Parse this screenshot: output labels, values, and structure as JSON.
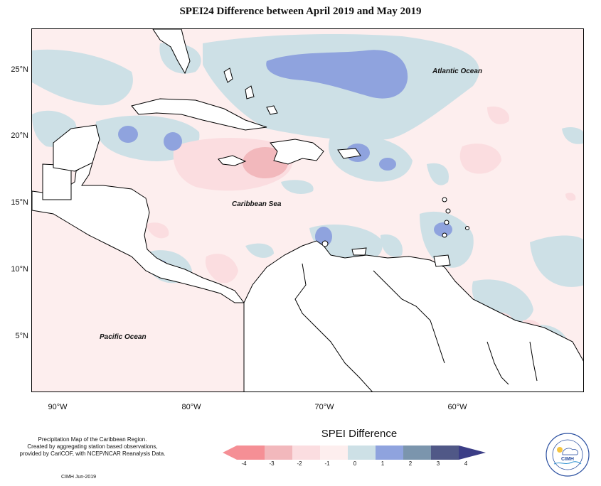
{
  "title": "SPEI24 Difference between April 2019 and May 2019",
  "map": {
    "lat_labels": [
      "25°N",
      "20°N",
      "15°N",
      "10°N",
      "5°N"
    ],
    "lon_labels": [
      "90°W",
      "80°W",
      "70°W",
      "60°W"
    ],
    "labels": {
      "atlantic": "Atlantic Ocean",
      "caribbean": "Caribbean Sea",
      "pacific": "Pacific Ocean"
    }
  },
  "legend": {
    "title": "SPEI Difference",
    "ticks": [
      "-4",
      "-3",
      "-2",
      "-1",
      "0",
      "1",
      "2",
      "3",
      "4"
    ],
    "colors": [
      "#f58f95",
      "#f2b8bc",
      "#fbdde0",
      "#fdeeee",
      "#cde0e6",
      "#8fa3de",
      "#7b95ad",
      "#505887",
      "#3b3d86"
    ]
  },
  "credit": {
    "line1": "Precipitation Map of the Caribbean Region.",
    "line2": "Created by aggregating station based observations,",
    "line3": "provided by CariCOF, with NCEP/NCAR Reanalysis Data.",
    "date": "CIMH  Jun-2019"
  },
  "logo": {
    "text": "CIMH",
    "ring_text": "Caribbean Institute for Meteorology and Hydrology"
  }
}
